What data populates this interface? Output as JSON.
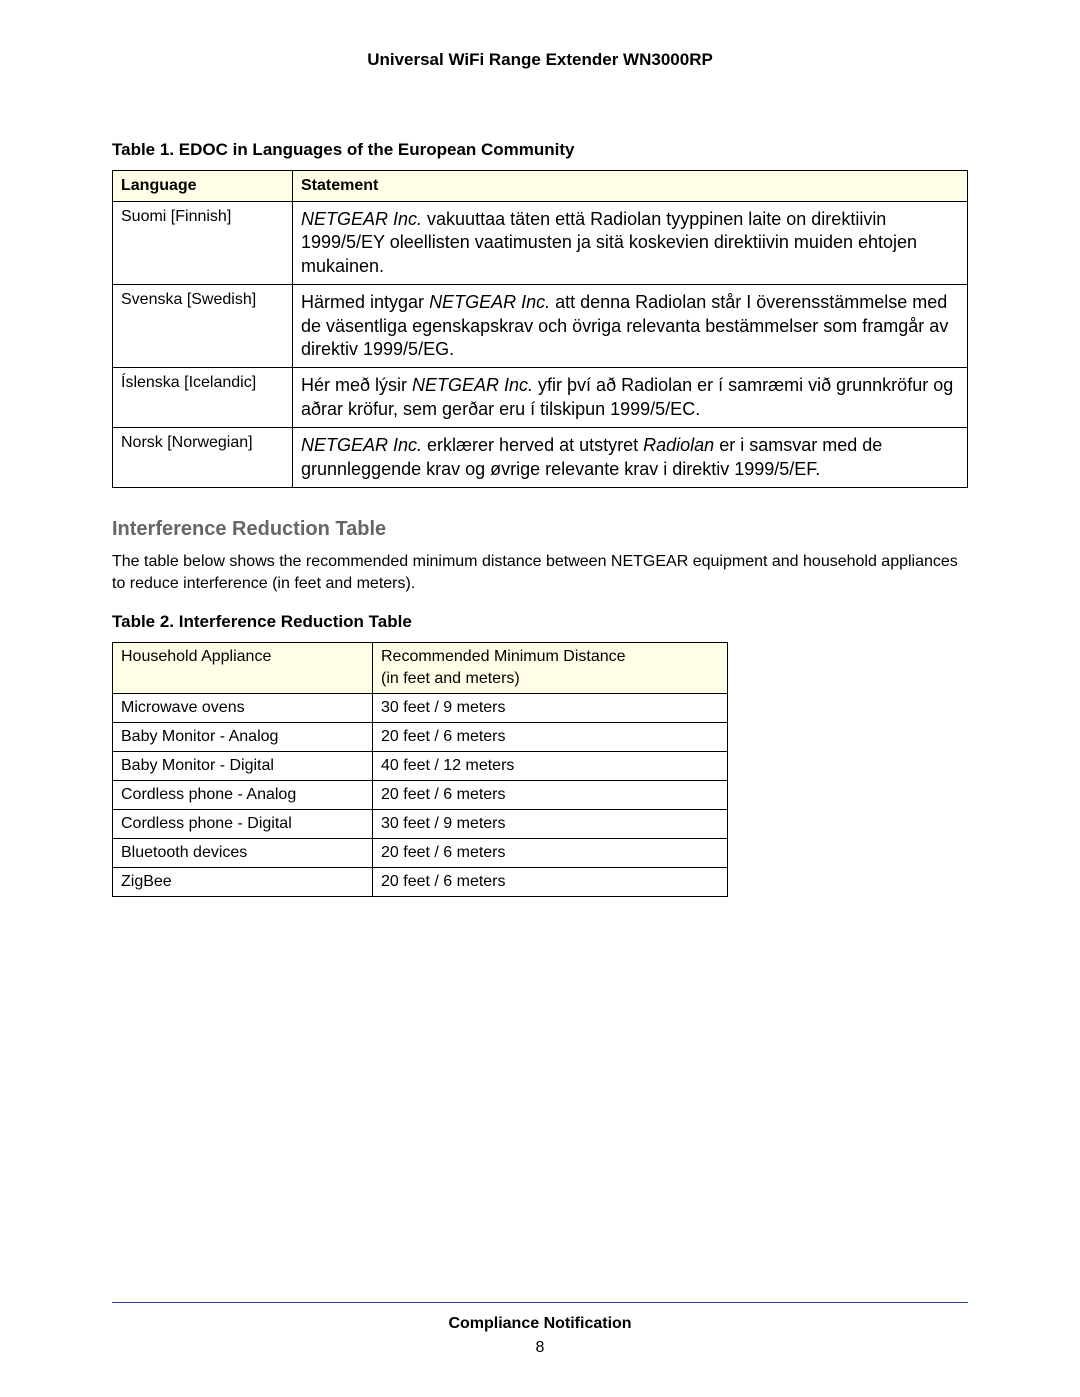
{
  "doc_title": "Universal WiFi Range Extender WN3000RP",
  "table1": {
    "caption": "Table 1.  EDOC in Languages of the European Community",
    "columns": [
      "Language",
      "Statement"
    ],
    "header_bg": "#ffffe8",
    "rows": [
      {
        "language": "Suomi [Finnish]",
        "pre": "",
        "company": "NETGEAR Inc.",
        "mid": " vakuuttaa täten että Radiolan tyyppinen laite on direktiivin 1999/5/EY oleellisten vaatimusten ja sitä koskevien direktiivin muiden ehtojen mukainen.",
        "product": "",
        "post": ""
      },
      {
        "language": "Svenska [Swedish]",
        "pre": "Härmed intygar ",
        "company": "NETGEAR Inc.",
        "mid": " att denna Radiolan står I överensstämmelse med de väsentliga egenskapskrav och övriga relevanta bestämmelser som framgår av direktiv 1999/5/EG.",
        "product": "",
        "post": ""
      },
      {
        "language": "Íslenska [Icelandic]",
        "pre": "Hér með lýsir ",
        "company": "NETGEAR Inc.",
        "mid": " yfir því að Radiolan er í samræmi við grunnkröfur og aðrar kröfur, sem gerðar eru í tilskipun 1999/5/EC.",
        "product": "",
        "post": ""
      },
      {
        "language": "Norsk [Norwegian]",
        "pre": "",
        "company": "NETGEAR Inc.",
        "mid": " erklærer herved at utstyret ",
        "product": "Radiolan",
        "post": " er i samsvar med de grunnleggende krav og øvrige relevante krav i direktiv 1999/5/EF."
      }
    ]
  },
  "section": {
    "heading": "Interference Reduction Table",
    "paragraph": "The table below shows the recommended minimum distance between NETGEAR equipment and household appliances to reduce interference (in feet and meters)."
  },
  "table2": {
    "caption": "Table 2.  Interference Reduction Table",
    "header_bg": "#ffffe8",
    "columns": {
      "col1": "Household Appliance",
      "col2_line1": "Recommended Minimum Distance",
      "col2_line2": "(in feet and meters)"
    },
    "rows": [
      {
        "appliance": "Microwave ovens",
        "distance": "30 feet / 9 meters"
      },
      {
        "appliance": "Baby Monitor - Analog",
        "distance": "20 feet / 6 meters"
      },
      {
        "appliance": "Baby Monitor - Digital",
        "distance": "40 feet / 12 meters"
      },
      {
        "appliance": "Cordless phone - Analog",
        "distance": "20 feet / 6 meters"
      },
      {
        "appliance": "Cordless phone - Digital",
        "distance": "30 feet / 9 meters"
      },
      {
        "appliance": "Bluetooth devices",
        "distance": "20 feet / 6 meters"
      },
      {
        "appliance": "ZigBee",
        "distance": "20 feet / 6 meters"
      }
    ]
  },
  "footer": {
    "rule_color": "#2a4b9b",
    "title": "Compliance Notification",
    "page": "8"
  }
}
